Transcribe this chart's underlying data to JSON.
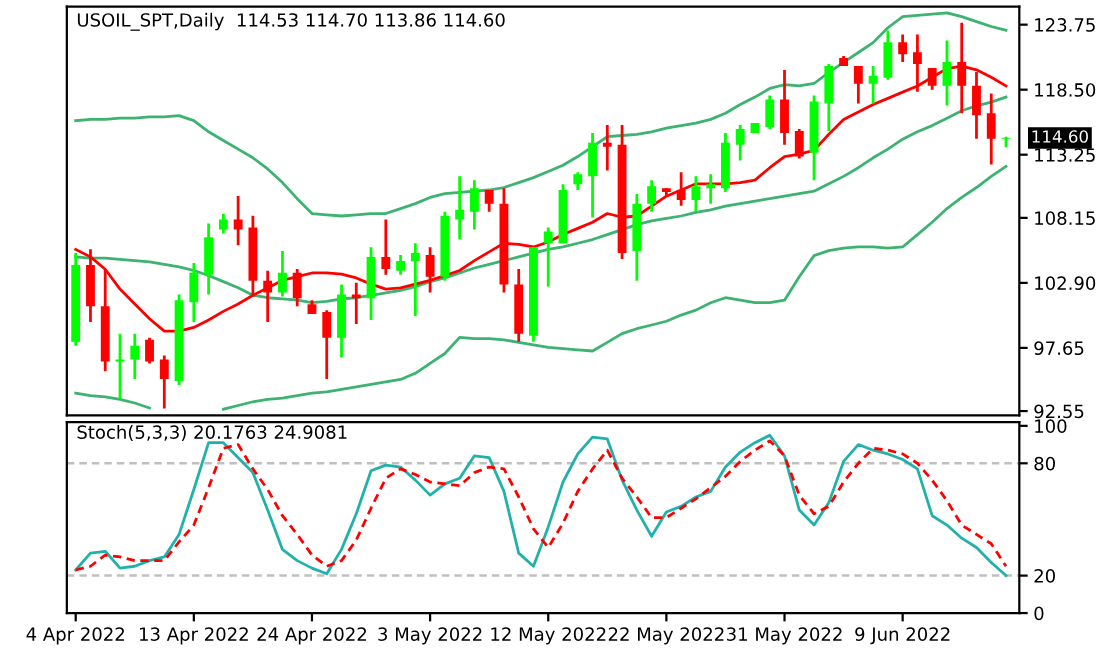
{
  "chart_data": [
    {
      "type": "candlestick",
      "title": "USOIL_SPT,Daily  114.53 114.70 113.86 114.60",
      "categories": [
        null,
        null,
        null,
        null,
        null,
        null,
        null,
        null,
        null,
        null,
        null,
        null,
        null,
        null,
        null,
        null,
        null,
        null,
        null,
        null,
        null,
        null,
        null,
        null,
        null,
        null,
        null,
        null,
        null,
        null,
        null,
        null,
        null,
        null,
        null,
        null,
        null,
        null,
        null,
        null,
        null,
        null,
        null,
        null,
        null,
        null,
        null,
        null,
        null,
        null,
        null,
        null,
        null,
        null,
        null,
        null,
        null,
        null,
        null,
        null,
        null,
        null,
        null,
        null
      ],
      "ylim": [
        92.2,
        125.2
      ],
      "yticks": [
        {
          "value": 123.75,
          "label": "123.75"
        },
        {
          "value": 118.5,
          "label": "118.50"
        },
        {
          "value": 113.25,
          "label": "113.25"
        },
        {
          "value": 108.15,
          "label": "108.15"
        },
        {
          "value": 102.9,
          "label": "102.90"
        },
        {
          "value": 97.65,
          "label": "97.65"
        },
        {
          "value": 92.55,
          "label": "92.55"
        }
      ],
      "tick_labels": "y",
      "annotations": [
        "114.60"
      ],
      "series": [
        {
          "type": "line",
          "color": "#3cb371",
          "values": [
            116.0,
            116.1,
            116.1,
            116.2,
            116.2,
            116.3,
            116.3,
            116.4,
            116.0,
            115.1,
            114.4,
            113.7,
            113.0,
            112.1,
            111.0,
            109.7,
            108.5,
            108.4,
            108.3,
            108.4,
            108.5,
            108.5,
            108.9,
            109.3,
            109.8,
            110.1,
            110.2,
            110.3,
            110.4,
            110.6,
            111.0,
            111.4,
            111.9,
            112.4,
            113.1,
            113.9,
            114.7,
            114.8,
            114.9,
            115.1,
            115.4,
            115.6,
            115.8,
            116.1,
            116.6,
            117.3,
            117.9,
            118.6,
            118.9,
            118.8,
            119.0,
            119.9,
            120.7,
            121.5,
            122.3,
            123.5,
            124.4,
            124.5,
            124.6,
            124.7,
            124.4,
            124.0,
            123.6,
            123.3
          ]
        },
        {
          "type": "line",
          "color": "#3cb371",
          "values": [
            105.0,
            104.9,
            104.9,
            104.8,
            104.7,
            104.6,
            104.4,
            104.2,
            103.9,
            103.5,
            103.0,
            102.5,
            101.9,
            101.7,
            101.6,
            101.5,
            101.3,
            101.4,
            101.6,
            101.7,
            101.9,
            102.1,
            102.3,
            102.6,
            103.0,
            103.3,
            103.7,
            104.1,
            104.4,
            104.7,
            105.0,
            105.3,
            105.6,
            105.8,
            106.1,
            106.4,
            106.8,
            107.2,
            107.6,
            107.9,
            108.1,
            108.3,
            108.6,
            108.8,
            109.1,
            109.3,
            109.5,
            109.7,
            109.9,
            110.1,
            110.3,
            110.9,
            111.5,
            112.2,
            113.0,
            113.7,
            114.5,
            115.1,
            115.6,
            116.2,
            116.8,
            117.2,
            117.5,
            117.9
          ]
        },
        {
          "type": "line",
          "color": "#3cb371",
          "values": [
            94.0,
            93.8,
            93.7,
            93.5,
            93.2,
            92.8,
            null,
            null,
            null,
            null,
            92.7,
            93.0,
            93.3,
            93.5,
            93.6,
            93.8,
            94.0,
            94.1,
            94.3,
            94.5,
            94.7,
            94.9,
            95.1,
            95.6,
            96.4,
            97.2,
            98.5,
            98.4,
            98.4,
            98.3,
            98.1,
            97.9,
            97.7,
            97.6,
            97.5,
            97.4,
            98.1,
            98.8,
            99.2,
            99.5,
            99.8,
            100.3,
            100.7,
            101.3,
            101.7,
            101.5,
            101.3,
            101.3,
            101.5,
            103.4,
            105.1,
            105.5,
            105.7,
            105.8,
            105.8,
            105.7,
            105.8,
            106.8,
            107.8,
            108.9,
            109.8,
            110.6,
            111.5,
            112.3
          ]
        },
        {
          "type": "line",
          "color": "#ff0000",
          "values": [
            105.6,
            105.0,
            104.0,
            102.4,
            101.2,
            100.0,
            99.0,
            99.0,
            99.3,
            99.9,
            100.6,
            101.2,
            101.9,
            102.5,
            103.1,
            103.4,
            103.7,
            103.7,
            103.6,
            103.3,
            102.8,
            102.4,
            102.5,
            102.8,
            103.1,
            103.5,
            103.9,
            104.7,
            105.4,
            106.1,
            106.0,
            105.8,
            106.2,
            106.8,
            107.3,
            107.8,
            108.5,
            108.2,
            108.3,
            109.1,
            109.9,
            110.4,
            110.9,
            110.9,
            110.9,
            111.0,
            111.2,
            112.2,
            113.1,
            113.3,
            113.6,
            114.9,
            116.1,
            116.7,
            117.3,
            117.8,
            118.3,
            118.8,
            119.5,
            120.2,
            120.4,
            120.1,
            119.5,
            118.8
          ]
        },
        {
          "colors": [
            "#00ff00",
            "#ff0000",
            "#ff0000",
            "#00ff00",
            "#00ff00",
            "#ff0000",
            "#ff0000",
            "#00ff00",
            "#00ff00",
            "#00ff00",
            "#00ff00",
            "#ff0000",
            "#ff0000",
            "#ff0000",
            "#00ff00",
            "#ff0000",
            "#ff0000",
            "#ff0000",
            "#00ff00",
            "#ff0000",
            "#00ff00",
            "#ff0000",
            "#00ff00",
            "#00ff00",
            "#ff0000",
            "#00ff00",
            "#00ff00",
            "#00ff00",
            "#ff0000",
            "#ff0000",
            "#ff0000",
            "#00ff00",
            "#00ff00",
            "#00ff00",
            "#00ff00",
            "#00ff00",
            "#ff0000",
            "#ff0000",
            "#00ff00",
            "#00ff00",
            "#ff0000",
            "#ff0000",
            "#00ff00",
            "#00ff00",
            "#00ff00",
            "#00ff00",
            "#00ff00",
            "#00ff00",
            "#ff0000",
            "#ff0000",
            "#00ff00",
            "#00ff00",
            "#ff0000",
            "#ff0000",
            "#00ff00",
            "#00ff00",
            "#ff0000",
            "#ff0000",
            "#ff0000",
            "#00ff00",
            "#ff0000",
            "#ff0000",
            "#ff0000",
            "#00ff00"
          ],
          "ohlc": [
            [
              98.15,
              105.31,
              97.83,
              104.35
            ],
            [
              104.35,
              105.62,
              99.74,
              101.01
            ],
            [
              101.01,
              104.03,
              95.77,
              96.56
            ],
            [
              96.56,
              98.79,
              93.54,
              96.72
            ],
            [
              96.72,
              98.79,
              95.13,
              97.83
            ],
            [
              98.31,
              98.47,
              96.4,
              96.56
            ],
            [
              96.72,
              97.04,
              92.75,
              95.13
            ],
            [
              94.97,
              101.97,
              94.65,
              101.49
            ],
            [
              101.33,
              104.51,
              99.74,
              103.72
            ],
            [
              103.56,
              107.69,
              101.97,
              106.58
            ],
            [
              107.21,
              108.49,
              106.9,
              108.01
            ],
            [
              108.01,
              109.92,
              105.94,
              107.21
            ],
            [
              107.37,
              108.33,
              101.81,
              103.08
            ],
            [
              103.08,
              103.88,
              99.74,
              102.13
            ],
            [
              102.13,
              105.47,
              101.81,
              103.72
            ],
            [
              103.72,
              104.03,
              101.01,
              101.65
            ],
            [
              101.17,
              101.49,
              100.38,
              100.38
            ],
            [
              100.54,
              100.7,
              95.13,
              98.47
            ],
            [
              98.47,
              102.76,
              96.88,
              101.97
            ],
            [
              101.97,
              102.92,
              99.58,
              101.65
            ],
            [
              101.65,
              105.78,
              99.9,
              104.99
            ],
            [
              104.99,
              108.01,
              103.56,
              104.03
            ],
            [
              103.88,
              105.15,
              103.56,
              104.67
            ],
            [
              104.67,
              106.1,
              100.22,
              105.31
            ],
            [
              105.15,
              105.78,
              102.13,
              103.4
            ],
            [
              103.4,
              108.65,
              103.08,
              108.33
            ],
            [
              108.01,
              111.51,
              106.42,
              108.8
            ],
            [
              108.65,
              111.19,
              107.21,
              110.55
            ],
            [
              110.39,
              110.39,
              108.65,
              109.28
            ],
            [
              109.28,
              110.55,
              102.13,
              102.76
            ],
            [
              102.76,
              104.03,
              98.15,
              98.79
            ],
            [
              98.63,
              105.78,
              98.15,
              105.78
            ],
            [
              106.1,
              107.37,
              102.6,
              107.05
            ],
            [
              106.1,
              110.87,
              106.1,
              110.39
            ],
            [
              110.87,
              111.83,
              110.39,
              111.67
            ],
            [
              111.51,
              115.0,
              108.17,
              114.21
            ],
            [
              114.21,
              115.64,
              111.98,
              113.89
            ],
            [
              114.05,
              115.64,
              104.83,
              105.31
            ],
            [
              105.47,
              110.08,
              103.08,
              109.28
            ],
            [
              109.28,
              111.19,
              108.65,
              110.71
            ],
            [
              110.55,
              110.55,
              109.92,
              110.23
            ],
            [
              110.39,
              111.83,
              109.12,
              109.6
            ],
            [
              109.6,
              111.51,
              108.65,
              110.71
            ],
            [
              110.55,
              111.67,
              109.28,
              110.87
            ],
            [
              110.55,
              115.0,
              110.23,
              114.21
            ],
            [
              114.05,
              115.64,
              112.78,
              115.32
            ],
            [
              115.0,
              115.8,
              115.0,
              115.8
            ],
            [
              115.48,
              118.03,
              115.32,
              117.71
            ],
            [
              117.71,
              120.09,
              114.05,
              115.0
            ],
            [
              115.16,
              115.32,
              112.94,
              113.1
            ],
            [
              113.41,
              118.03,
              111.19,
              117.55
            ],
            [
              117.39,
              120.57,
              115.16,
              120.41
            ],
            [
              121.05,
              121.21,
              120.41,
              120.41
            ],
            [
              120.41,
              120.41,
              117.39,
              118.98
            ],
            [
              118.98,
              120.41,
              117.39,
              119.62
            ],
            [
              119.46,
              123.27,
              119.3,
              122.32
            ],
            [
              122.32,
              122.96,
              120.73,
              121.37
            ],
            [
              121.52,
              122.96,
              118.34,
              120.57
            ],
            [
              120.25,
              120.25,
              118.5,
              118.82
            ],
            [
              118.82,
              122.48,
              117.23,
              120.73
            ],
            [
              120.73,
              123.91,
              116.6,
              118.82
            ],
            [
              118.82,
              119.93,
              114.53,
              116.44
            ],
            [
              116.6,
              118.19,
              112.46,
              114.53
            ],
            [
              114.53,
              114.7,
              113.86,
              114.6
            ]
          ]
        }
      ]
    },
    {
      "type": "line",
      "title": "Stoch(5,3,3) 20.1763 24.9081",
      "categories": [
        "4 Apr 2022",
        null,
        null,
        null,
        null,
        null,
        null,
        null,
        "13 Apr 2022",
        null,
        null,
        null,
        null,
        null,
        null,
        null,
        "24 Apr 2022",
        null,
        null,
        null,
        null,
        null,
        null,
        null,
        "3 May 2022",
        null,
        null,
        null,
        null,
        null,
        null,
        null,
        "12 May 2022",
        null,
        null,
        null,
        null,
        null,
        null,
        null,
        "22 May 2022",
        null,
        null,
        null,
        null,
        null,
        null,
        null,
        "31 May 2022",
        null,
        null,
        null,
        null,
        null,
        null,
        null,
        "9 Jun 2022",
        null,
        null,
        null,
        null,
        null,
        null,
        null
      ],
      "ylim": [
        0,
        102
      ],
      "yticks": [
        0,
        20,
        80,
        100
      ],
      "ref_lines": [
        {
          "axis": "y",
          "value": 80,
          "color": "#c0c0c0",
          "line_style": "dashed"
        },
        {
          "axis": "y",
          "value": 20,
          "color": "#c0c0c0",
          "line_style": "dashed"
        }
      ],
      "series": [
        {
          "color": "#20b2aa",
          "values": [
            23,
            32,
            33,
            24,
            25,
            28,
            30,
            42,
            66,
            91,
            91,
            83,
            75,
            55,
            34,
            28,
            24,
            21,
            34,
            53,
            76,
            79,
            78,
            71,
            63,
            69,
            72,
            84,
            83,
            65,
            32,
            25,
            46,
            70,
            85,
            94,
            93,
            71,
            55,
            41,
            54,
            57,
            62,
            65,
            78,
            86,
            91,
            95,
            84,
            55,
            47,
            59,
            81,
            90,
            87,
            85,
            82,
            77,
            52,
            47,
            40,
            35,
            27,
            20
          ]
        },
        {
          "color": "#ff0000",
          "line_style": "dashed",
          "values": [
            23,
            25,
            31,
            30,
            28,
            28,
            28,
            38,
            47,
            67,
            88,
            90,
            77,
            66,
            52,
            42,
            31,
            25,
            28,
            39,
            56,
            72,
            77,
            74,
            70,
            69,
            68,
            75,
            78,
            77,
            62,
            45,
            35,
            48,
            65,
            77,
            87,
            72,
            62,
            51,
            51,
            56,
            61,
            67,
            73,
            81,
            87,
            92,
            84,
            63,
            53,
            57,
            70,
            80,
            88,
            87,
            85,
            80,
            71,
            60,
            47,
            42,
            37,
            25
          ]
        }
      ]
    }
  ]
}
